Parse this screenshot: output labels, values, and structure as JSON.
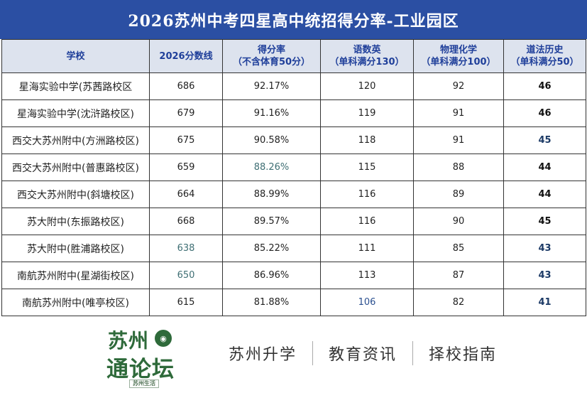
{
  "title": "2026苏州中考四星高中统招得分率-工业园区",
  "headers": [
    {
      "line1": "学校",
      "line2": ""
    },
    {
      "line1": "2026分数线",
      "line2": ""
    },
    {
      "line1": "得分率",
      "line2": "（不含体育50分）"
    },
    {
      "line1": "语数英",
      "line2": "（单科满分130）"
    },
    {
      "line1": "物理化学",
      "line2": "（单科满分100）"
    },
    {
      "line1": "道法历史",
      "line2": "（单科满分50）"
    }
  ],
  "rows": [
    {
      "school": "星海实验中学(苏茜路校区",
      "score": "686",
      "rate": "92.17%",
      "yss": "120",
      "wlhx": "92",
      "dfls": "46"
    },
    {
      "school": "星海实验中学(沈浒路校区)",
      "score": "679",
      "rate": "91.16%",
      "yss": "119",
      "wlhx": "91",
      "dfls": "46"
    },
    {
      "school": "西交大苏州附中(方洲路校区)",
      "score": "675",
      "rate": "90.58%",
      "yss": "118",
      "wlhx": "91",
      "dfls": "45"
    },
    {
      "school": "西交大苏州附中(普惠路校区)",
      "score": "659",
      "rate": "88.26%",
      "yss": "115",
      "wlhx": "88",
      "dfls": "44"
    },
    {
      "school": "西交大苏州附中(斜塘校区)",
      "score": "664",
      "rate": "88.99%",
      "yss": "116",
      "wlhx": "89",
      "dfls": "44"
    },
    {
      "school": "苏大附中(东振路校区)",
      "score": "668",
      "rate": "89.57%",
      "yss": "116",
      "wlhx": "90",
      "dfls": "45"
    },
    {
      "school": "苏大附中(胜浦路校区)",
      "score": "638",
      "rate": "85.22%",
      "yss": "111",
      "wlhx": "85",
      "dfls": "43"
    },
    {
      "school": "南航苏州附中(星湖街校区)",
      "score": "650",
      "rate": "86.96%",
      "yss": "113",
      "wlhx": "87",
      "dfls": "43"
    },
    {
      "school": "南航苏州附中(唯亭校区)",
      "score": "615",
      "rate": "81.88%",
      "yss": "106",
      "wlhx": "82",
      "dfls": "41"
    }
  ],
  "footer": {
    "logo_line1": "苏州",
    "logo_line2": "通论坛",
    "logo_seal": "苏州生活",
    "slogans": [
      "苏州升学",
      "教育资讯",
      "择校指南"
    ]
  },
  "colors": {
    "title_bg": "#2b4fa3",
    "header_bg": "#dde3ee",
    "header_text": "#1f3f9a",
    "logo_green": "#2e6a3a"
  }
}
